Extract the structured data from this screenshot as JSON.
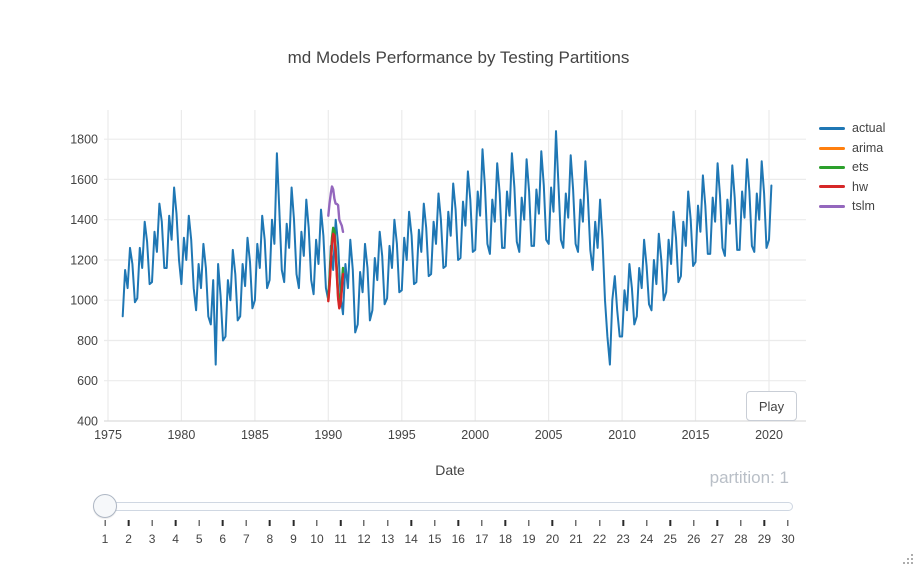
{
  "colors": {
    "text": "#444444",
    "muted_text": "#b9bfc7",
    "grid": "#ebebeb",
    "axis_line": "#d8d8d8"
  },
  "play_button": {
    "label": "Play"
  },
  "slider": {
    "current_value_label": "partition: 1",
    "value": "1",
    "steps": [
      "1",
      "2",
      "3",
      "4",
      "5",
      "6",
      "7",
      "8",
      "9",
      "10",
      "11",
      "12",
      "13",
      "14",
      "15",
      "16",
      "17",
      "18",
      "19",
      "20",
      "21",
      "22",
      "23",
      "24",
      "25",
      "26",
      "27",
      "28",
      "29",
      "30"
    ]
  },
  "chart_data": {
    "type": "line",
    "title": "md Models Performance by Testing Partitions",
    "xlabel": "Date",
    "ylabel": "",
    "xlim": [
      1974.73,
      2022.52
    ],
    "ylim": [
      400,
      1945
    ],
    "xticks": [
      1975,
      1980,
      1985,
      1990,
      1995,
      2000,
      2005,
      2010,
      2015,
      2020
    ],
    "yticks": [
      400,
      600,
      800,
      1000,
      1200,
      1400,
      1600,
      1800
    ],
    "grid": true,
    "legend_position": "right",
    "series": [
      {
        "name": "actual",
        "color": "#1f77b4",
        "width": 2,
        "x_start": 1976.0,
        "x_step": 0.16667,
        "y": [
          920,
          1150,
          1060,
          1260,
          1180,
          990,
          1010,
          1260,
          1160,
          1390,
          1290,
          1080,
          1090,
          1340,
          1240,
          1480,
          1390,
          1160,
          1160,
          1420,
          1300,
          1560,
          1430,
          1200,
          1080,
          1310,
          1200,
          1420,
          1300,
          1060,
          950,
          1180,
          1060,
          1280,
          1160,
          920,
          880,
          1100,
          680,
          1180,
          1020,
          800,
          820,
          1100,
          1000,
          1250,
          1130,
          900,
          920,
          1180,
          1070,
          1310,
          1190,
          960,
          1000,
          1280,
          1160,
          1420,
          1300,
          1060,
          1100,
          1400,
          1280,
          1730,
          1450,
          1150,
          1090,
          1380,
          1260,
          1560,
          1400,
          1130,
          1060,
          1340,
          1220,
          1500,
          1360,
          1100,
          1030,
          1300,
          1180,
          1450,
          1320,
          1060,
          1000,
          1270,
          1150,
          1400,
          1280,
          1020,
          930,
          1180,
          1060,
          1300,
          1150,
          840,
          880,
          1140,
          1040,
          1280,
          1160,
          900,
          950,
          1210,
          1100,
          1340,
          1220,
          980,
          1010,
          1270,
          1160,
          1400,
          1280,
          1040,
          1050,
          1310,
          1200,
          1440,
          1320,
          1080,
          1090,
          1350,
          1240,
          1480,
          1360,
          1120,
          1130,
          1390,
          1280,
          1530,
          1400,
          1160,
          1170,
          1440,
          1320,
          1580,
          1450,
          1200,
          1210,
          1490,
          1370,
          1640,
          1500,
          1240,
          1250,
          1540,
          1420,
          1750,
          1560,
          1280,
          1230,
          1500,
          1390,
          1680,
          1530,
          1260,
          1260,
          1540,
          1420,
          1730,
          1560,
          1290,
          1240,
          1510,
          1400,
          1700,
          1540,
          1270,
          1270,
          1550,
          1430,
          1740,
          1570,
          1300,
          1280,
          1560,
          1440,
          1840,
          1580,
          1300,
          1260,
          1530,
          1410,
          1720,
          1550,
          1280,
          1240,
          1500,
          1390,
          1690,
          1520,
          1250,
          1150,
          1390,
          1260,
          1500,
          1300,
          1000,
          820,
          680,
          1000,
          1120,
          950,
          820,
          820,
          1050,
          950,
          1180,
          1060,
          880,
          920,
          1160,
          1060,
          1300,
          1170,
          980,
          950,
          1200,
          1080,
          1330,
          1200,
          1000,
          1040,
          1300,
          1180,
          1440,
          1310,
          1090,
          1120,
          1390,
          1270,
          1540,
          1400,
          1170,
          1190,
          1470,
          1340,
          1620,
          1470,
          1230,
          1230,
          1510,
          1390,
          1680,
          1520,
          1260,
          1220,
          1500,
          1380,
          1670,
          1510,
          1250,
          1250,
          1540,
          1410,
          1700,
          1540,
          1270,
          1240,
          1530,
          1400,
          1690,
          1530,
          1260,
          1300,
          1570
        ]
      },
      {
        "name": "arima",
        "color": "#ff7f0e",
        "width": 2.4,
        "x_start": 1990.0,
        "x_step": 0.08333,
        "y": [
          1000,
          1080,
          1190,
          1290,
          1340,
          1330,
          1250,
          1130,
          1020,
          970,
          990,
          1060,
          1140
        ]
      },
      {
        "name": "ets",
        "color": "#2ca02c",
        "width": 2.4,
        "x_start": 1990.0,
        "x_step": 0.08333,
        "y": [
          1015,
          1100,
          1215,
          1310,
          1360,
          1345,
          1265,
          1145,
          1035,
          985,
          1005,
          1085,
          1160
        ]
      },
      {
        "name": "hw",
        "color": "#d62728",
        "width": 2.4,
        "x_start": 1990.0,
        "x_step": 0.08333,
        "y": [
          995,
          1070,
          1180,
          1280,
          1330,
          1320,
          1240,
          1120,
          1010,
          960,
          980,
          1050,
          1130
        ]
      },
      {
        "name": "tslm",
        "color": "#9467bd",
        "width": 2.4,
        "x_start": 1990.0,
        "x_step": 0.08333,
        "y": [
          1420,
          1480,
          1530,
          1565,
          1550,
          1505,
          1480,
          1478,
          1472,
          1400,
          1385,
          1370,
          1340
        ]
      }
    ]
  }
}
